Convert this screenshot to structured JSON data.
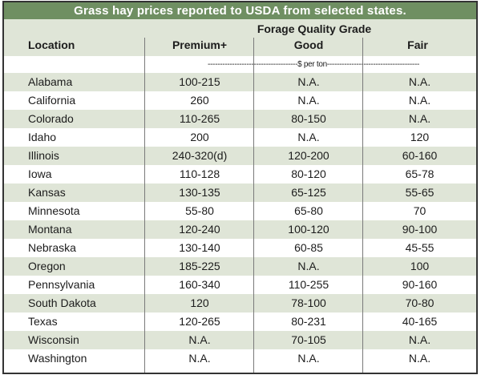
{
  "title": "Grass hay prices reported to USDA from selected states.",
  "header": {
    "grade_title": "Forage Quality Grade",
    "location_label": "Location",
    "columns": [
      "Premium+",
      "Good",
      "Fair"
    ],
    "unit": "-------------------------------------$ per ton--------------------------------------"
  },
  "rows": [
    {
      "location": "Alabama",
      "premium": "100-215",
      "good": "N.A.",
      "fair": "N.A."
    },
    {
      "location": "California",
      "premium": "260",
      "good": "N.A.",
      "fair": "N.A."
    },
    {
      "location": "Colorado",
      "premium": "110-265",
      "good": "80-150",
      "fair": "N.A."
    },
    {
      "location": "Idaho",
      "premium": "200",
      "good": "N.A.",
      "fair": "120"
    },
    {
      "location": "Illinois",
      "premium": "240-320(d)",
      "good": "120-200",
      "fair": "60-160"
    },
    {
      "location": "Iowa",
      "premium": "110-128",
      "good": "80-120",
      "fair": "65-78"
    },
    {
      "location": "Kansas",
      "premium": "130-135",
      "good": "65-125",
      "fair": "55-65"
    },
    {
      "location": "Minnesota",
      "premium": "55-80",
      "good": "65-80",
      "fair": "70"
    },
    {
      "location": "Montana",
      "premium": "120-240",
      "good": "100-120",
      "fair": "90-100"
    },
    {
      "location": "Nebraska",
      "premium": "130-140",
      "good": "60-85",
      "fair": "45-55"
    },
    {
      "location": "Oregon",
      "premium": "185-225",
      "good": "N.A.",
      "fair": "100"
    },
    {
      "location": "Pennsylvania",
      "premium": "160-340",
      "good": "110-255",
      "fair": "90-160"
    },
    {
      "location": "South Dakota",
      "premium": "120",
      "good": "78-100",
      "fair": "70-80"
    },
    {
      "location": "Texas",
      "premium": "120-265",
      "good": "80-231",
      "fair": "40-165"
    },
    {
      "location": "Wisconsin",
      "premium": "N.A.",
      "good": "70-105",
      "fair": "N.A."
    },
    {
      "location": "Washington",
      "premium": "N.A.",
      "good": "N.A.",
      "fair": "N.A."
    }
  ],
  "colors": {
    "title_bar": "#6f8f62",
    "band": "#dfe5d7",
    "border": "#333333"
  }
}
